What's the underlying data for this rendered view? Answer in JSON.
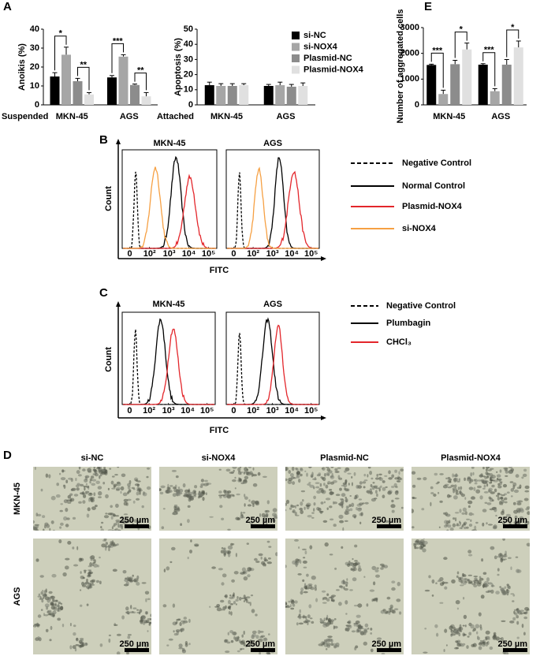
{
  "panel_labels": [
    "A",
    "B",
    "C",
    "D",
    "E"
  ],
  "chart_data": [
    {
      "type": "bar",
      "ylabel": "Anoikis (%)",
      "condition": "Suspended",
      "categories": [
        "MKN-45",
        "AGS"
      ],
      "ylim": [
        0,
        40
      ],
      "yticks": [
        0,
        10,
        20,
        30,
        40
      ],
      "series": [
        {
          "color": "#000000",
          "values": [
            15,
            14.5
          ],
          "errors": [
            2,
            1
          ]
        },
        {
          "color": "#a6a6a6",
          "values": [
            26.5,
            25.5
          ],
          "errors": [
            4,
            1
          ]
        },
        {
          "color": "#8c8c8c",
          "values": [
            12.5,
            10.5
          ],
          "errors": [
            1.5,
            0.5
          ]
        },
        {
          "color": "#e0e0e0",
          "values": [
            5.5,
            4.5
          ],
          "errors": [
            1,
            2
          ]
        }
      ],
      "comparisons": [
        {
          "category": 0,
          "pair": [
            0,
            1
          ],
          "label": "*"
        },
        {
          "category": 0,
          "pair": [
            2,
            3
          ],
          "label": "**"
        },
        {
          "category": 1,
          "pair": [
            0,
            1
          ],
          "label": "***"
        },
        {
          "category": 1,
          "pair": [
            2,
            3
          ],
          "label": "**"
        }
      ]
    },
    {
      "type": "bar",
      "ylabel": "Apoptosis (%)",
      "condition": "Attached",
      "categories": [
        "MKN-45",
        "AGS"
      ],
      "ylim": [
        0,
        50
      ],
      "yticks": [
        0,
        10,
        20,
        30,
        40,
        50
      ],
      "legend": "right",
      "series": [
        {
          "name": "si-NC",
          "color": "#000000",
          "values": [
            13,
            12.5
          ],
          "errors": [
            2,
            1
          ]
        },
        {
          "name": "si-NOX4",
          "color": "#a6a6a6",
          "values": [
            12.5,
            13
          ],
          "errors": [
            1.5,
            2
          ]
        },
        {
          "name": "Plasmid-NC",
          "color": "#8c8c8c",
          "values": [
            12.5,
            12
          ],
          "errors": [
            1.5,
            1.5
          ]
        },
        {
          "name": "Plasmid-NOX4",
          "color": "#e0e0e0",
          "values": [
            13,
            12.5
          ],
          "errors": [
            1,
            2
          ]
        }
      ]
    },
    {
      "type": "bar",
      "ylabel": "Number of aggregated cells",
      "categories": [
        "MKN-45",
        "AGS"
      ],
      "ylim": [
        0,
        3000
      ],
      "yticks": [
        0,
        1000,
        2000,
        3000
      ],
      "series": [
        {
          "color": "#000000",
          "values": [
            1550,
            1560
          ],
          "errors": [
            30,
            40
          ]
        },
        {
          "color": "#a6a6a6",
          "values": [
            420,
            530
          ],
          "errors": [
            150,
            100
          ]
        },
        {
          "color": "#8c8c8c",
          "values": [
            1580,
            1560
          ],
          "errors": [
            150,
            200
          ]
        },
        {
          "color": "#e0e0e0",
          "values": [
            2150,
            2230
          ],
          "errors": [
            250,
            250
          ]
        }
      ],
      "comparisons": [
        {
          "category": 0,
          "pair": [
            0,
            1
          ],
          "label": "***"
        },
        {
          "category": 0,
          "pair": [
            2,
            3
          ],
          "label": "*"
        },
        {
          "category": 1,
          "pair": [
            0,
            1
          ],
          "label": "***"
        },
        {
          "category": 1,
          "pair": [
            2,
            3
          ],
          "label": "*"
        }
      ]
    },
    {
      "type": "flow",
      "panels": [
        "MKN-45",
        "AGS"
      ],
      "xlabel": "FITC",
      "ylabel": "Count",
      "xscale": "biexponential",
      "xlim": [
        -20,
        262144
      ],
      "xticks": [
        {
          "value": 0,
          "label": "0"
        },
        {
          "value": 100,
          "label": "10²"
        },
        {
          "value": 1000,
          "label": "10³"
        },
        {
          "value": 10000,
          "label": "10⁴"
        },
        {
          "value": 100000,
          "label": "10⁵"
        }
      ],
      "legend": "right",
      "series": [
        {
          "name": "Negative Control",
          "color": "#000000",
          "dash": true
        },
        {
          "name": "Normal Control",
          "color": "#000000"
        },
        {
          "name": "Plasmid-NOX4",
          "color": "#e3262b"
        },
        {
          "name": "si-NOX4",
          "color": "#f6a043"
        }
      ]
    },
    {
      "type": "flow",
      "panels": [
        "MKN-45",
        "AGS"
      ],
      "xlabel": "FITC",
      "ylabel": "Count",
      "xscale": "biexponential",
      "xlim": [
        -20,
        262144
      ],
      "xticks": [
        {
          "value": 0,
          "label": "0"
        },
        {
          "value": 100,
          "label": "10²"
        },
        {
          "value": 1000,
          "label": "10³"
        },
        {
          "value": 10000,
          "label": "10⁴"
        },
        {
          "value": 100000,
          "label": "10⁵"
        }
      ],
      "legend": "right",
      "series": [
        {
          "name": "Negative Control",
          "color": "#000000",
          "dash": true
        },
        {
          "name": "Plumbagin",
          "color": "#000000"
        },
        {
          "name": "CHCl₃",
          "color": "#e3262b"
        }
      ]
    }
  ],
  "micrographs": {
    "columns": [
      "si-NC",
      "si-NOX4",
      "Plasmid-NC",
      "Plasmid-NOX4"
    ],
    "rows": [
      "MKN-45",
      "AGS"
    ],
    "scale_bar": "250 µm"
  }
}
